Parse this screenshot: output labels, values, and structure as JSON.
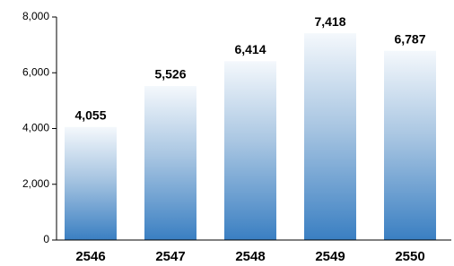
{
  "chart_data": {
    "type": "bar",
    "categories": [
      "2546",
      "2547",
      "2548",
      "2549",
      "2550"
    ],
    "values": [
      4055,
      5526,
      6414,
      7418,
      6787
    ],
    "value_labels": [
      "4,055",
      "5,526",
      "6,414",
      "7,418",
      "6,787"
    ],
    "color": "#3a7fc2",
    "ylim": [
      0,
      8000
    ],
    "yticks": [
      0,
      {
        "value": 2000,
        "label": "2,000"
      },
      {
        "value": 4000,
        "label": "4,000"
      },
      {
        "value": 6000,
        "label": "6,000"
      },
      {
        "value": 8000,
        "label": "8,000"
      }
    ]
  }
}
